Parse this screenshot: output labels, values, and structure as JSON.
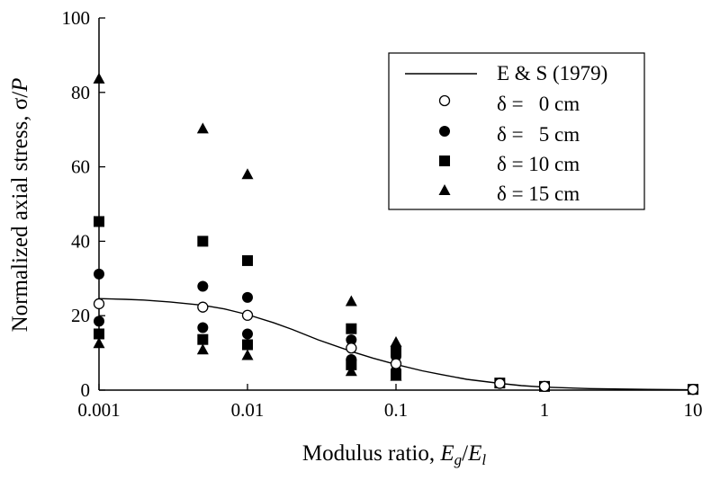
{
  "chart_data": {
    "type": "scatter",
    "x_scale": "log",
    "xlim": [
      0.001,
      10
    ],
    "ylim": [
      0,
      100
    ],
    "xlabel": {
      "prefix": "Modulus ratio, ",
      "var1": "E",
      "sub1": "g",
      "slash": "/",
      "var2": "E",
      "sub2": "l"
    },
    "ylabel": {
      "prefix": "Normalized axial stress, σ/",
      "var": "P"
    },
    "x_ticks": [
      0.001,
      0.01,
      0.1,
      1,
      10
    ],
    "x_tick_labels": [
      "0.001",
      "0.01",
      "0.1",
      "1",
      "10"
    ],
    "y_ticks": [
      0,
      20,
      40,
      60,
      80,
      100
    ],
    "y_tick_labels": [
      "0",
      "20",
      "40",
      "60",
      "80",
      "100"
    ],
    "grid": false,
    "legend_position": "top-right",
    "series": [
      {
        "name": "E & S (1979)",
        "marker": "line",
        "x": [
          0.001,
          0.0015,
          0.002,
          0.003,
          0.005,
          0.007,
          0.01,
          0.015,
          0.02,
          0.03,
          0.05,
          0.07,
          0.1,
          0.15,
          0.2,
          0.3,
          0.5,
          0.7,
          1,
          2,
          5,
          10
        ],
        "y": [
          24.6,
          24.4,
          24.2,
          23.7,
          22.8,
          21.8,
          20.3,
          18.1,
          16.3,
          13.5,
          10.4,
          8.6,
          6.9,
          5.2,
          4.2,
          2.9,
          1.8,
          1.2,
          0.8,
          0.4,
          0.2,
          0.1
        ]
      },
      {
        "name": "δ =   0 cm",
        "marker": "circle-open",
        "x": [
          0.001,
          0.005,
          0.01,
          0.05,
          0.1,
          0.5,
          1,
          10
        ],
        "y": [
          23.2,
          22.3,
          20.1,
          11.3,
          7.1,
          1.8,
          1.0,
          0.2
        ]
      },
      {
        "name": "δ =   5 cm",
        "marker": "circle-filled",
        "x": [
          0.001,
          0.001,
          0.005,
          0.005,
          0.01,
          0.01,
          0.05,
          0.05,
          0.1,
          0.1,
          0.5,
          1,
          10
        ],
        "y": [
          31.2,
          18.5,
          27.9,
          16.8,
          24.9,
          15.1,
          13.5,
          8.2,
          9.1,
          5.2,
          1.9,
          1.0,
          0.2
        ]
      },
      {
        "name": "δ = 10 cm",
        "marker": "square-filled",
        "x": [
          0.001,
          0.001,
          0.005,
          0.005,
          0.01,
          0.01,
          0.05,
          0.05,
          0.1,
          0.1,
          0.5,
          1,
          10
        ],
        "y": [
          45.3,
          15.1,
          40.0,
          13.6,
          34.8,
          12.2,
          16.5,
          6.8,
          10.5,
          4.2,
          1.9,
          1.0,
          0.2
        ]
      },
      {
        "name": "δ = 15 cm",
        "marker": "triangle-filled",
        "x": [
          0.001,
          0.001,
          0.005,
          0.005,
          0.01,
          0.01,
          0.05,
          0.05,
          0.1,
          0.1
        ],
        "y": [
          83.6,
          12.5,
          70.2,
          10.8,
          57.9,
          9.3,
          23.8,
          5.0,
          12.8,
          3.7
        ]
      }
    ]
  }
}
